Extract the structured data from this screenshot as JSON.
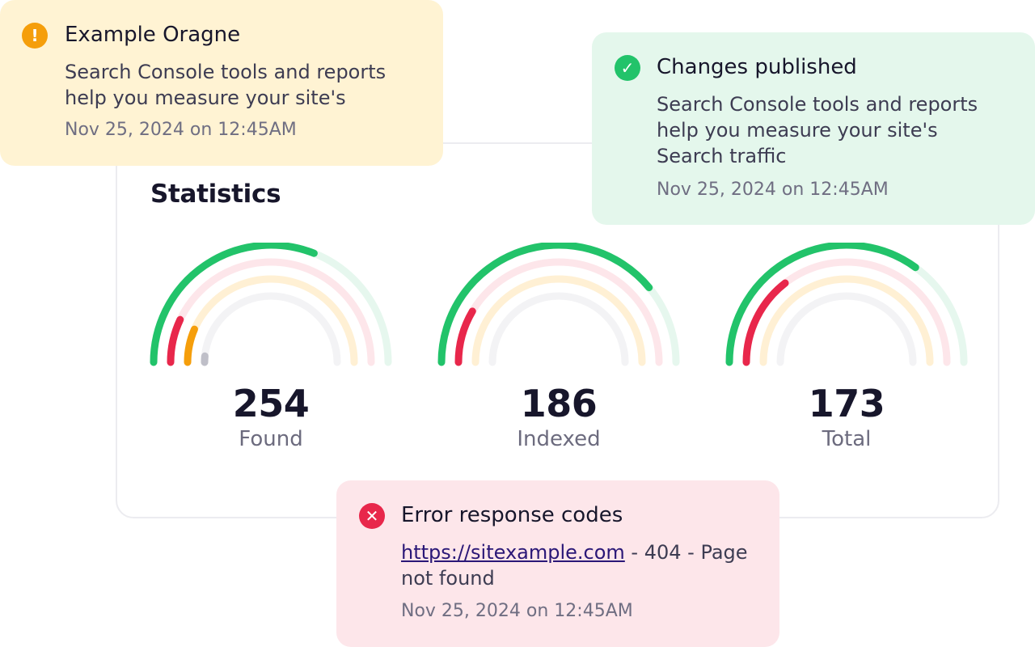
{
  "statistics": {
    "title": "Statistics",
    "gauges": [
      {
        "value": "254",
        "label": "Found",
        "arcs": [
          {
            "color": "#22c36a",
            "track": "#e6f7ee",
            "fill": 0.62
          },
          {
            "color": "#e8274b",
            "track": "#fde6ea",
            "fill": 0.14
          },
          {
            "color": "#f59e0b",
            "track": "#fff0d4",
            "fill": 0.13
          },
          {
            "color": "#bfbfc8",
            "track": "#f3f3f5",
            "fill": 0.03
          }
        ]
      },
      {
        "value": "186",
        "label": "Indexed",
        "arcs": [
          {
            "color": "#22c36a",
            "track": "#e6f7ee",
            "fill": 0.78
          },
          {
            "color": "#e8274b",
            "track": "#fde6ea",
            "fill": 0.17
          },
          {
            "color": "#f59e0b",
            "track": "#fff0d4",
            "fill": 0
          },
          {
            "color": "#bfbfc8",
            "track": "#f3f3f5",
            "fill": 0
          }
        ]
      },
      {
        "value": "173",
        "label": "Total",
        "arcs": [
          {
            "color": "#22c36a",
            "track": "#e6f7ee",
            "fill": 0.7
          },
          {
            "color": "#e8274b",
            "track": "#fde6ea",
            "fill": 0.29
          },
          {
            "color": "#f59e0b",
            "track": "#fff0d4",
            "fill": 0
          },
          {
            "color": "#bfbfc8",
            "track": "#f3f3f5",
            "fill": 0
          }
        ]
      }
    ]
  },
  "toasts": {
    "warning": {
      "icon": "exclamation-icon",
      "icon_glyph": "!",
      "title": "Example Oragne",
      "body": "Search Console tools and reports help you measure your site's",
      "time": "Nov 25, 2024 on 12:45AM"
    },
    "success": {
      "icon": "check-icon",
      "icon_glyph": "✓",
      "title": "Changes published",
      "body": "Search Console tools and reports help you measure your site's Search traffic",
      "time": "Nov 25, 2024 on 12:45AM"
    },
    "error": {
      "icon": "close-icon",
      "icon_glyph": "✕",
      "title": "Error response codes",
      "link": "https://sitexample.com",
      "body_suffix": " - 404 - Page not found",
      "time": "Nov 25, 2024 on 12:45AM"
    }
  }
}
